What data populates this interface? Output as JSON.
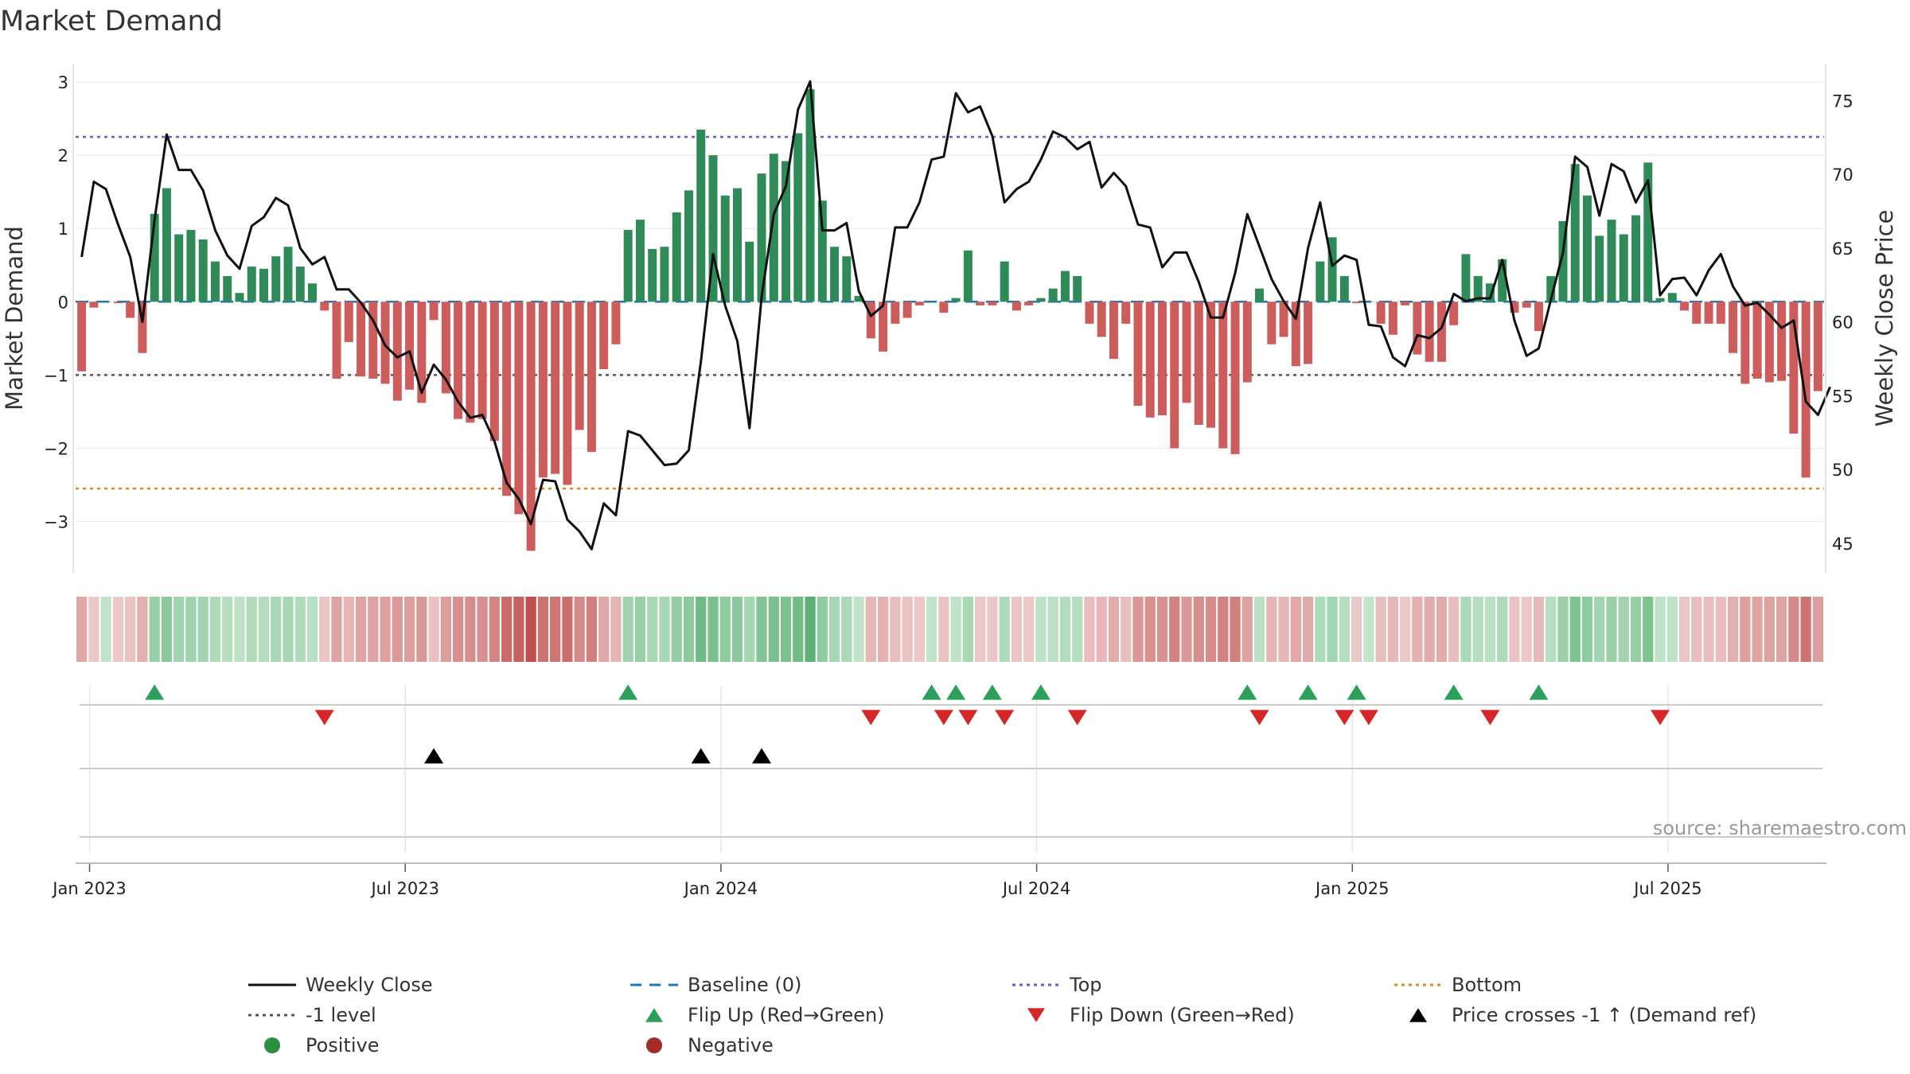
{
  "chart_data": {
    "type": "bar",
    "title": "Market Demand",
    "ylabel_left": "Market Demand",
    "ylabel_right": "Weekly Close Price",
    "ylim_left": [
      -3.7,
      3.25
    ],
    "ylim_right": [
      43.0,
      77.5
    ],
    "yticks_left": [
      3,
      2,
      1,
      0,
      -1,
      -2,
      -3
    ],
    "yticks_left_labels": [
      "3",
      "2",
      "1",
      "0",
      "−1",
      "−2",
      "−3"
    ],
    "yticks_right": [
      75,
      70,
      65,
      60,
      55,
      50,
      45
    ],
    "yticks_right_labels": [
      "75",
      "70",
      "65",
      "60",
      "55",
      "50",
      "45"
    ],
    "x_axis": {
      "start_week_of": "2022-12-26",
      "weeks": 145,
      "tick_weeks": [
        1,
        27,
        53,
        79,
        105,
        131
      ],
      "tick_labels": [
        "Jan 2023",
        "Jul 2023",
        "Jan 2024",
        "Jul 2024",
        "Jan 2025",
        "Jul 2025"
      ]
    },
    "reference_lines": {
      "baseline": 0,
      "minus_one": -1,
      "top": 2.25,
      "bottom": -2.55
    },
    "demand": [
      -0.95,
      -0.08,
      0.0,
      -0.02,
      -0.22,
      -0.7,
      1.2,
      1.55,
      0.92,
      0.98,
      0.85,
      0.55,
      0.35,
      0.12,
      0.48,
      0.45,
      0.62,
      0.75,
      0.48,
      0.25,
      -0.12,
      -1.05,
      -0.55,
      -1.02,
      -1.05,
      -1.12,
      -1.35,
      -1.2,
      -1.38,
      -0.25,
      -1.25,
      -1.6,
      -1.65,
      -1.6,
      -1.9,
      -2.65,
      -2.9,
      -3.4,
      -2.4,
      -2.35,
      -2.5,
      -1.75,
      -2.05,
      -0.92,
      -0.58,
      0.98,
      1.12,
      0.72,
      0.75,
      1.22,
      1.52,
      2.35,
      2.0,
      1.45,
      1.55,
      0.82,
      1.75,
      2.02,
      1.92,
      2.3,
      2.9,
      1.38,
      0.75,
      0.62,
      0.08,
      -0.5,
      -0.68,
      -0.3,
      -0.22,
      -0.05,
      -0.0,
      -0.15,
      0.05,
      0.7,
      -0.05,
      -0.05,
      0.55,
      -0.12,
      -0.05,
      0.05,
      0.18,
      0.42,
      0.35,
      -0.3,
      -0.48,
      -0.78,
      -0.3,
      -1.42,
      -1.58,
      -1.55,
      -2.0,
      -1.38,
      -1.68,
      -1.72,
      -2.0,
      -2.08,
      -1.1,
      0.18,
      -0.58,
      -0.48,
      -0.88,
      -0.85,
      0.55,
      0.88,
      0.35,
      -0.02,
      -0.0,
      -0.3,
      -0.45,
      -0.05,
      -0.72,
      -0.82,
      -0.82,
      -0.32,
      0.65,
      0.35,
      0.25,
      0.58,
      -0.15,
      -0.08,
      -0.4,
      0.35,
      1.1,
      1.88,
      1.45,
      0.9,
      1.12,
      0.92,
      1.18,
      1.9,
      0.05,
      0.12,
      -0.12,
      -0.3,
      -0.3,
      -0.3,
      -0.7,
      -1.12,
      -1.05,
      -1.1,
      -1.08,
      -1.8,
      -2.4,
      -1.22
    ],
    "weekly_close": [
      64.4,
      69.5,
      69.0,
      66.6,
      64.4,
      60.0,
      66.9,
      72.7,
      70.3,
      70.3,
      68.9,
      66.2,
      64.5,
      63.6,
      66.5,
      67.1,
      68.4,
      67.9,
      65.0,
      63.9,
      64.4,
      62.2,
      62.2,
      61.3,
      60.1,
      58.4,
      57.6,
      58.0,
      55.2,
      57.1,
      56.1,
      54.6,
      53.5,
      53.7,
      51.9,
      49.1,
      48.0,
      46.3,
      49.3,
      49.2,
      46.6,
      45.8,
      44.6,
      47.7,
      46.9,
      52.6,
      52.3,
      51.3,
      50.3,
      50.4,
      51.3,
      57.3,
      64.6,
      61.1,
      58.7,
      52.8,
      61.7,
      67.3,
      69.2,
      74.4,
      76.3,
      66.2,
      66.2,
      66.7,
      62.1,
      60.4,
      61.1,
      66.4,
      66.4,
      68.1,
      71.0,
      71.2,
      75.5,
      74.2,
      74.6,
      72.6,
      68.1,
      69.0,
      69.5,
      71.0,
      72.9,
      72.5,
      71.7,
      72.2,
      69.1,
      70.1,
      69.2,
      66.6,
      66.4,
      63.7,
      64.7,
      64.7,
      62.7,
      60.3,
      60.3,
      63.3,
      67.3,
      65.1,
      62.9,
      61.4,
      60.2,
      65.0,
      68.1,
      63.8,
      64.5,
      64.2,
      59.8,
      59.7,
      57.6,
      57.0,
      59.1,
      58.9,
      59.6,
      61.9,
      61.4,
      61.6,
      61.6,
      64.2,
      60.1,
      57.7,
      58.2,
      61.5,
      64.7,
      71.2,
      70.5,
      67.2,
      70.7,
      70.2,
      68.1,
      69.6,
      61.8,
      62.9,
      63.0,
      61.8,
      63.5,
      64.6,
      62.4,
      61.1,
      61.3,
      60.5,
      59.6,
      60.1,
      54.6,
      53.7,
      55.6
    ],
    "flip_up_weeks": [
      6,
      45,
      70,
      72,
      75,
      79,
      96,
      101,
      105,
      113,
      120
    ],
    "flip_down_weeks": [
      20,
      65,
      71,
      73,
      76,
      82,
      97,
      104,
      106,
      116,
      130
    ],
    "price_cross_weeks": [
      29,
      51,
      56
    ],
    "legend": [
      {
        "label": "Weekly Close",
        "kind": "line-solid",
        "color": "#111111"
      },
      {
        "label": "Baseline (0)",
        "kind": "line-dash",
        "color": "#1f77b4"
      },
      {
        "label": "Top",
        "kind": "line-dot",
        "color": "#6a5acd"
      },
      {
        "label": "Bottom",
        "kind": "line-dot",
        "color": "#e08a1e"
      },
      {
        "label": "-1 level",
        "kind": "line-dot",
        "color": "#555555"
      },
      {
        "label": "Flip Up (Red→Green)",
        "kind": "tri-up",
        "color": "#2ca05a"
      },
      {
        "label": "Flip Down (Green→Red)",
        "kind": "tri-down",
        "color": "#d62728"
      },
      {
        "label": "Price crosses -1 ↑ (Demand ref)",
        "kind": "tri-up",
        "color": "#000000"
      },
      {
        "label": "Positive",
        "kind": "dot",
        "color": "#2a8f3e"
      },
      {
        "label": "Negative",
        "kind": "dot",
        "color": "#a52a2a"
      }
    ],
    "source": "source: sharemaestro.com"
  },
  "colors": {
    "positive_bar": "#2e8b57",
    "negative_bar": "#cd5c5c",
    "close_line": "#111111",
    "baseline": "#1f77b4",
    "top": "#6a5acd",
    "bottom": "#e08a1e",
    "minus_one": "#555555",
    "flip_up": "#2ca05a",
    "flip_down": "#d62728",
    "cross": "#000000",
    "grid": "#e8e8e8",
    "axis": "#cccccc"
  }
}
